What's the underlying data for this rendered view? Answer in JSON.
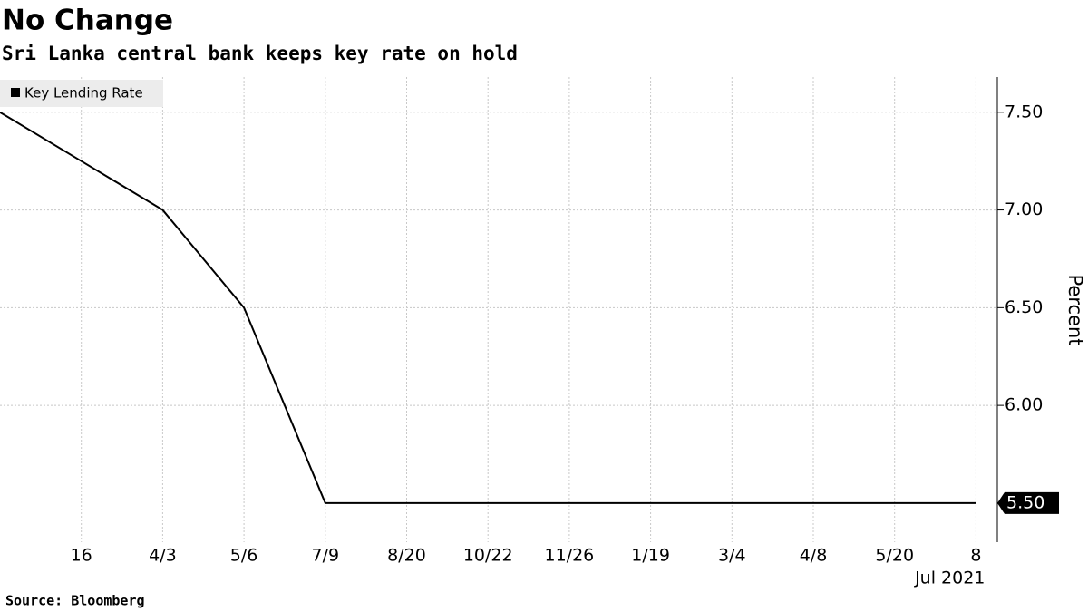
{
  "chart_data": {
    "type": "line",
    "title": "No Change",
    "subtitle": "Sri Lanka central bank keeps key rate on hold",
    "source": "Source: Bloomberg",
    "y_label": "Percent",
    "categories": [
      null,
      "16",
      "4/3",
      "5/6",
      "7/9",
      "8/20",
      "10/22",
      "11/26",
      "1/19",
      "3/4",
      "4/8",
      "5/20",
      "8"
    ],
    "x_sublabel": "Jul 2021",
    "series": [
      {
        "name": "Key Lending Rate",
        "color": "#000000",
        "values": [
          7.5,
          7.25,
          7.0,
          6.5,
          5.5,
          5.5,
          5.5,
          5.5,
          5.5,
          5.5,
          5.5,
          5.5,
          5.5
        ],
        "value_labels": [
          null,
          null,
          null,
          null,
          null,
          null,
          null,
          null,
          null,
          null,
          null,
          null,
          "5.50"
        ]
      }
    ],
    "ylim": [
      5.3,
      7.68
    ],
    "yticks": [
      {
        "value": 6,
        "label": "6.00"
      },
      {
        "value": 6.5,
        "label": "6.50"
      },
      {
        "value": 7,
        "label": "7.00"
      },
      {
        "value": 7.5,
        "label": "7.50"
      }
    ],
    "grid": true
  }
}
